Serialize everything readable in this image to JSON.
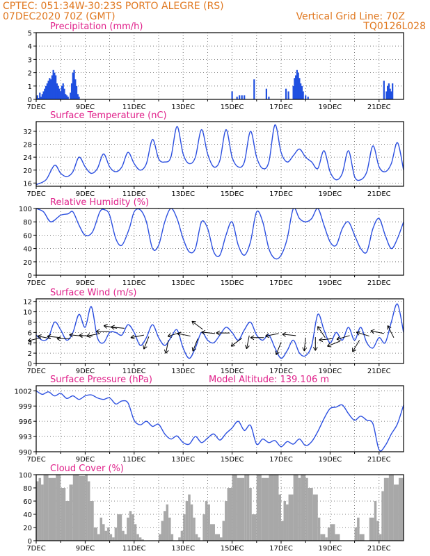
{
  "header": {
    "line1": "CPTEC:   051:34W-30:23S   PORTO ALEGRE (RS)",
    "line2": "07DEC2020 70Z (GMT)",
    "grid_note": "Vertical Grid Line: 70Z",
    "model": "TQ0126L028"
  },
  "colors": {
    "header": "#e07820",
    "title": "#e0208a",
    "precip": "#1f4fe0",
    "line": "#2b4fe0",
    "cloud": "#a8a8a8",
    "wind_line": "#2b4fe0",
    "arrow": "#000000"
  },
  "chart_data": [
    {
      "type": "bar",
      "title": "Precipitation (mm/h)",
      "ylim": [
        0,
        5
      ],
      "yticks": [
        0,
        1,
        2,
        3,
        4,
        5
      ],
      "xticks": [
        "7DEC",
        "9DEC",
        "11DEC",
        "13DEC",
        "15DEC",
        "17DEC",
        "19DEC",
        "21DEC"
      ],
      "x_unit": "days since 7DEC",
      "xlim": [
        0,
        15
      ],
      "x": [
        0.05,
        0.1,
        0.15,
        0.2,
        0.25,
        0.3,
        0.35,
        0.4,
        0.45,
        0.5,
        0.55,
        0.6,
        0.65,
        0.7,
        0.75,
        0.8,
        0.85,
        0.9,
        0.95,
        1.0,
        1.05,
        1.1,
        1.15,
        1.2,
        1.25,
        1.3,
        1.4,
        1.45,
        1.5,
        1.55,
        1.6,
        1.65,
        1.7,
        1.75,
        8.0,
        8.2,
        8.3,
        8.4,
        8.5,
        8.9,
        9.4,
        9.5,
        10.2,
        10.3,
        10.3,
        10.5,
        10.55,
        10.6,
        10.65,
        10.7,
        10.75,
        10.8,
        10.85,
        10.9,
        11.0,
        11.1,
        14.2,
        14.3,
        14.35,
        14.4,
        14.45,
        14.5,
        14.55
      ],
      "values": [
        0.3,
        0.1,
        0.5,
        0.2,
        0.4,
        0.6,
        0.8,
        1.0,
        1.2,
        1.4,
        1.6,
        1.5,
        1.8,
        2.2,
        2.0,
        1.8,
        1.2,
        1.0,
        0.8,
        0.6,
        1.0,
        1.2,
        0.8,
        0.4,
        0.3,
        0.2,
        0.5,
        1.2,
        2.0,
        2.2,
        1.5,
        1.0,
        0.4,
        0.2,
        0.6,
        0.2,
        0.3,
        0.3,
        0.3,
        1.5,
        0.8,
        0.2,
        0.8,
        0.6,
        0.2,
        1.0,
        1.6,
        1.8,
        2.2,
        2.0,
        1.6,
        1.2,
        1.0,
        0.6,
        0.3,
        0.2,
        1.4,
        0.6,
        1.0,
        1.2,
        0.8,
        0.6,
        1.2
      ]
    },
    {
      "type": "line",
      "title": "Surface Temperature (nC)",
      "ylim": [
        15,
        35
      ],
      "yticks": [
        16,
        20,
        24,
        28,
        32
      ],
      "xticks": [
        "7DEC",
        "9DEC",
        "11DEC",
        "13DEC",
        "15DEC",
        "17DEC",
        "19DEC",
        "21DEC"
      ],
      "xlim": [
        0,
        15
      ],
      "x": [
        0,
        0.4,
        0.75,
        1.0,
        1.25,
        1.5,
        1.75,
        2.0,
        2.25,
        2.5,
        2.75,
        3.0,
        3.25,
        3.5,
        3.75,
        4.0,
        4.25,
        4.5,
        4.75,
        5.0,
        5.25,
        5.5,
        5.75,
        6.0,
        6.25,
        6.5,
        6.75,
        7.0,
        7.25,
        7.5,
        7.75,
        8.0,
        8.25,
        8.5,
        8.75,
        9.0,
        9.25,
        9.5,
        9.75,
        10.0,
        10.25,
        10.5,
        10.75,
        11.0,
        11.25,
        11.5,
        11.75,
        12.0,
        12.25,
        12.5,
        12.75,
        13.0,
        13.25,
        13.5,
        13.75,
        14.0,
        14.25,
        14.5,
        14.75,
        15.0
      ],
      "values": [
        15.5,
        17.0,
        21.5,
        19.0,
        18.0,
        19.5,
        24.0,
        21.0,
        19.0,
        20.5,
        25.0,
        21.0,
        19.5,
        21.0,
        25.5,
        22.0,
        20.0,
        22.0,
        29.5,
        23.5,
        22.5,
        24.0,
        33.5,
        25.0,
        22.0,
        24.0,
        32.5,
        25.0,
        21.0,
        23.0,
        32.5,
        24.0,
        21.0,
        22.5,
        32.0,
        24.0,
        20.5,
        22.5,
        34.0,
        25.5,
        22.5,
        24.5,
        26.5,
        24.0,
        22.5,
        20.5,
        26.0,
        19.5,
        17.0,
        19.0,
        26.0,
        18.0,
        17.0,
        19.5,
        27.5,
        21.0,
        19.5,
        22.0,
        28.5,
        20.0
      ]
    },
    {
      "type": "line",
      "title": "Relative Humidity (%)",
      "ylim": [
        0,
        100
      ],
      "yticks": [
        0,
        20,
        40,
        60,
        80,
        100
      ],
      "xticks": [
        "7DEC",
        "9DEC",
        "11DEC",
        "13DEC",
        "15DEC",
        "17DEC",
        "19DEC",
        "21DEC"
      ],
      "xlim": [
        0,
        15
      ],
      "x": [
        0,
        0.3,
        0.6,
        1.0,
        1.3,
        1.5,
        1.75,
        2.0,
        2.3,
        2.6,
        2.8,
        3.0,
        3.25,
        3.5,
        3.8,
        4.0,
        4.25,
        4.5,
        4.75,
        5.0,
        5.25,
        5.5,
        5.75,
        6.0,
        6.25,
        6.5,
        6.75,
        7.0,
        7.25,
        7.5,
        7.75,
        8.0,
        8.25,
        8.5,
        8.75,
        9.0,
        9.25,
        9.5,
        9.75,
        10.0,
        10.25,
        10.5,
        10.75,
        11.0,
        11.25,
        11.5,
        11.75,
        12.0,
        12.25,
        12.5,
        12.75,
        13.0,
        13.25,
        13.5,
        13.75,
        14.0,
        14.25,
        14.5,
        14.75,
        15.0
      ],
      "values": [
        100,
        95,
        80,
        90,
        92,
        95,
        75,
        60,
        65,
        95,
        98,
        90,
        55,
        45,
        70,
        95,
        98,
        80,
        40,
        45,
        80,
        100,
        85,
        55,
        35,
        40,
        80,
        70,
        35,
        30,
        60,
        80,
        45,
        30,
        50,
        95,
        80,
        40,
        25,
        30,
        55,
        100,
        85,
        80,
        85,
        100,
        75,
        50,
        45,
        70,
        80,
        60,
        40,
        35,
        70,
        85,
        60,
        40,
        55,
        80
      ]
    },
    {
      "type": "line",
      "title": "Surface Wind (m/s)",
      "ylim": [
        0,
        12.5
      ],
      "yticks": [
        0,
        2,
        4,
        6,
        8,
        10,
        12
      ],
      "xticks": [
        "7DEC",
        "9DEC",
        "11DEC",
        "13DEC",
        "15DEC",
        "17DEC",
        "19DEC",
        "21DEC"
      ],
      "xlim": [
        0,
        15
      ],
      "x": [
        0,
        0.25,
        0.5,
        0.75,
        1.0,
        1.25,
        1.5,
        1.75,
        2.0,
        2.25,
        2.5,
        2.75,
        3.0,
        3.25,
        3.5,
        3.75,
        4.0,
        4.25,
        4.5,
        4.75,
        5.0,
        5.25,
        5.5,
        5.75,
        6.0,
        6.25,
        6.5,
        6.75,
        7.0,
        7.25,
        7.5,
        7.75,
        8.0,
        8.25,
        8.5,
        8.75,
        9.0,
        9.25,
        9.5,
        9.75,
        10.0,
        10.25,
        10.5,
        10.75,
        11.0,
        11.25,
        11.5,
        11.75,
        12.0,
        12.25,
        12.5,
        12.75,
        13.0,
        13.25,
        13.5,
        13.75,
        14.0,
        14.25,
        14.5,
        14.75,
        15.0
      ],
      "values": [
        5.5,
        4.5,
        5.0,
        8.0,
        6.5,
        4.5,
        6.0,
        9.5,
        7.0,
        11.0,
        5.0,
        4.0,
        6.0,
        6.0,
        5.5,
        7.5,
        6.0,
        3.5,
        5.0,
        7.5,
        5.0,
        3.5,
        5.0,
        6.5,
        3.0,
        1.0,
        3.0,
        6.0,
        4.5,
        4.0,
        5.5,
        7.0,
        6.0,
        4.5,
        6.5,
        8.0,
        5.5,
        4.5,
        5.5,
        3.0,
        1.0,
        2.5,
        4.5,
        2.0,
        1.5,
        3.5,
        9.5,
        6.5,
        4.0,
        6.0,
        4.5,
        7.0,
        4.5,
        7.0,
        4.0,
        3.0,
        5.0,
        4.0,
        8.0,
        11.5,
        6.0
      ],
      "arrows": [
        [
          0.2,
          5.0,
          -1,
          -0.25
        ],
        [
          0.6,
          4.8,
          -1,
          0.2
        ],
        [
          1.0,
          5.0,
          -1,
          0.1
        ],
        [
          1.4,
          4.8,
          -1,
          0.0
        ],
        [
          1.9,
          5.3,
          -1,
          0.1
        ],
        [
          2.3,
          5.3,
          -1,
          0.05
        ],
        [
          2.6,
          5.8,
          -1,
          -0.2
        ],
        [
          3.0,
          6.2,
          -1,
          0.0
        ],
        [
          3.3,
          6.8,
          -1,
          0.2
        ],
        [
          3.6,
          6.8,
          -1,
          0.1
        ],
        [
          4.4,
          5.5,
          -1,
          -0.2
        ],
        [
          4.6,
          5.2,
          -0.4,
          -1
        ],
        [
          5.4,
          4.5,
          -0.2,
          -1
        ],
        [
          5.9,
          6.0,
          -1,
          -0.3
        ],
        [
          6.3,
          5.3,
          -1,
          0.2
        ],
        [
          6.6,
          4.8,
          -0.4,
          -1
        ],
        [
          6.8,
          6.6,
          -0.8,
          0.6
        ],
        [
          7.3,
          5.8,
          -1,
          0.1
        ],
        [
          7.9,
          5.9,
          -1,
          0.0
        ],
        [
          8.4,
          4.9,
          -0.8,
          -0.6
        ],
        [
          8.7,
          5.4,
          -0.2,
          -1
        ],
        [
          9.3,
          5.0,
          -1,
          0.0
        ],
        [
          9.9,
          5.8,
          -1,
          -0.2
        ],
        [
          10.0,
          4.1,
          -0.4,
          -1
        ],
        [
          10.6,
          5.4,
          -1,
          0.1
        ],
        [
          11.0,
          5.0,
          -0.1,
          -1
        ],
        [
          11.4,
          5.1,
          0.0,
          -1
        ],
        [
          11.8,
          5.0,
          -0.6,
          0.9
        ],
        [
          12.1,
          4.8,
          -1,
          -0.1
        ],
        [
          12.4,
          4.3,
          -1,
          -0.4
        ],
        [
          12.8,
          5.4,
          -1,
          -0.3
        ],
        [
          13.2,
          4.5,
          -0.6,
          -1
        ],
        [
          13.6,
          5.3,
          -1,
          0.3
        ],
        [
          14.2,
          5.8,
          -1,
          0.2
        ],
        [
          14.6,
          5.0,
          -0.5,
          1
        ]
      ]
    },
    {
      "type": "line",
      "title": "Surface Pressure (hPa)",
      "annotation": "Model Altitude: 139.106 m",
      "ylim": [
        990,
        1003
      ],
      "yticks": [
        990,
        993,
        996,
        999,
        1002
      ],
      "xticks": [
        "7DEC",
        "9DEC",
        "11DEC",
        "13DEC",
        "15DEC",
        "17DEC",
        "19DEC",
        "21DEC"
      ],
      "xlim": [
        0,
        15
      ],
      "x": [
        0,
        0.25,
        0.5,
        0.75,
        1.0,
        1.25,
        1.5,
        1.75,
        2.0,
        2.25,
        2.5,
        2.75,
        3.0,
        3.25,
        3.5,
        3.75,
        4.0,
        4.25,
        4.5,
        4.75,
        5.0,
        5.25,
        5.5,
        5.75,
        6.0,
        6.25,
        6.5,
        6.75,
        7.0,
        7.25,
        7.5,
        7.75,
        8.0,
        8.25,
        8.5,
        8.75,
        9.0,
        9.25,
        9.5,
        9.75,
        10.0,
        10.25,
        10.5,
        10.75,
        11.0,
        11.25,
        11.5,
        11.75,
        12.0,
        12.25,
        12.5,
        12.75,
        13.0,
        13.25,
        13.5,
        13.75,
        14.0,
        14.25,
        14.5,
        14.75,
        15.0
      ],
      "values": [
        1002,
        1001.3,
        1001.8,
        1001,
        1001.5,
        1000.5,
        1001,
        1000.3,
        1001,
        1001.2,
        1000.6,
        1000.3,
        1000.6,
        999.4,
        1000,
        999.6,
        996.2,
        995.3,
        996,
        995,
        995.4,
        993.5,
        992.5,
        993.1,
        991.8,
        991.5,
        993.0,
        991.8,
        992.7,
        993.5,
        992.3,
        993.6,
        994.7,
        996.0,
        994.2,
        995.2,
        991.5,
        992.5,
        991.8,
        992.2,
        991.0,
        992.0,
        991.5,
        992.5,
        991.2,
        992.0,
        994.0,
        996.5,
        998.5,
        998.8,
        999.2,
        997.5,
        996.2,
        997.0,
        996.2,
        995.5,
        990.4,
        991.2,
        993.5,
        995.5,
        999.2
      ]
    },
    {
      "type": "area",
      "title": "Cloud Cover (%)",
      "ylim": [
        0,
        100
      ],
      "yticks": [
        0,
        20,
        40,
        60,
        80,
        100
      ],
      "xticks": [
        "7DEC",
        "9DEC",
        "11DEC",
        "13DEC",
        "15DEC",
        "17DEC",
        "19DEC",
        "21DEC"
      ],
      "xlim": [
        0,
        15
      ],
      "x": [
        0,
        0.1,
        0.2,
        0.3,
        0.5,
        0.8,
        1.0,
        1.2,
        1.35,
        1.5,
        1.75,
        2.0,
        2.1,
        2.2,
        2.35,
        2.5,
        2.6,
        2.7,
        2.8,
        2.9,
        3.0,
        3.1,
        3.2,
        3.3,
        3.5,
        3.6,
        3.7,
        3.8,
        3.9,
        4.0,
        4.1,
        4.2,
        4.3,
        4.4,
        4.5,
        4.6,
        4.8,
        5.0,
        5.1,
        5.2,
        5.3,
        5.4,
        5.5,
        5.6,
        5.7,
        5.8,
        5.9,
        6.0,
        6.1,
        6.2,
        6.3,
        6.4,
        6.5,
        6.6,
        6.7,
        6.8,
        6.9,
        7.0,
        7.1,
        7.3,
        7.5,
        7.6,
        7.7,
        7.8,
        8.0,
        8.2,
        8.5,
        8.6,
        8.7,
        8.8,
        9.0,
        9.2,
        9.5,
        9.7,
        9.9,
        10.0,
        10.1,
        10.2,
        10.3,
        10.5,
        10.7,
        10.8,
        11.0,
        11.1,
        11.3,
        11.5,
        11.6,
        11.8,
        11.9,
        12.0,
        12.2,
        12.4,
        12.6,
        12.8,
        13.0,
        13.1,
        13.2,
        13.4,
        13.6,
        13.8,
        13.9,
        14.0,
        14.1,
        14.2,
        14.4,
        14.6,
        14.8,
        15.0
      ],
      "values": [
        90,
        95,
        85,
        100,
        95,
        100,
        80,
        60,
        85,
        100,
        98,
        100,
        90,
        60,
        20,
        10,
        35,
        25,
        15,
        20,
        10,
        5,
        20,
        40,
        15,
        10,
        35,
        45,
        40,
        25,
        10,
        5,
        2,
        0,
        0,
        0,
        0,
        10,
        30,
        45,
        55,
        35,
        10,
        0,
        0,
        5,
        15,
        40,
        60,
        70,
        55,
        35,
        10,
        5,
        0,
        40,
        60,
        55,
        25,
        10,
        5,
        30,
        60,
        80,
        100,
        95,
        100,
        100,
        80,
        40,
        100,
        95,
        100,
        100,
        70,
        30,
        60,
        55,
        70,
        100,
        95,
        100,
        95,
        80,
        70,
        35,
        10,
        5,
        20,
        25,
        10,
        0,
        0,
        0,
        20,
        35,
        10,
        0,
        35,
        60,
        30,
        10,
        75,
        95,
        100,
        85,
        95,
        100
      ]
    }
  ]
}
